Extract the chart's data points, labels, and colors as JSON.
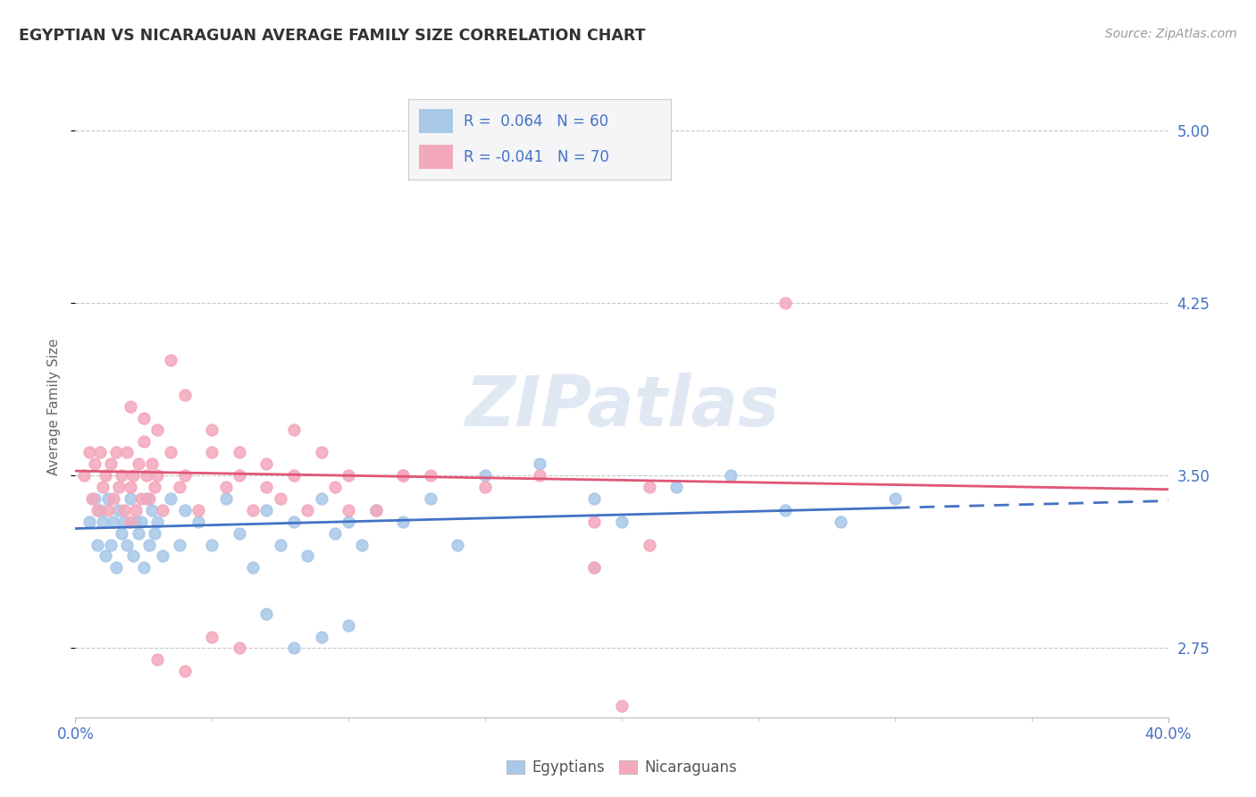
{
  "title": "EGYPTIAN VS NICARAGUAN AVERAGE FAMILY SIZE CORRELATION CHART",
  "source": "Source: ZipAtlas.com",
  "ylabel": "Average Family Size",
  "yticks": [
    2.75,
    3.5,
    4.25,
    5.0
  ],
  "xlim": [
    0.0,
    40.0
  ],
  "ylim": [
    2.45,
    5.15
  ],
  "R_egyptian": 0.064,
  "N_egyptian": 60,
  "R_nicaraguan": -0.041,
  "N_nicaraguan": 70,
  "egyptian_color": "#a8c8e8",
  "nicaraguan_color": "#f4a8bc",
  "trend_egyptian_color": "#4472c4",
  "trend_nicaraguan_color": "#e05575",
  "watermark": "ZIPatlas",
  "background_color": "#ffffff",
  "grid_color": "#c8c8c8",
  "title_color": "#333333",
  "axis_label_color": "#4472c4",
  "eg_trend_intercept": 3.27,
  "eg_trend_slope": 0.003,
  "ni_trend_intercept": 3.52,
  "ni_trend_slope": -0.002,
  "eg_solid_x_end": 30.0,
  "ni_solid_x_end": 40.0,
  "egyptian_points": [
    [
      0.5,
      3.3
    ],
    [
      0.7,
      3.4
    ],
    [
      0.8,
      3.2
    ],
    [
      0.9,
      3.35
    ],
    [
      1.0,
      3.3
    ],
    [
      1.1,
      3.15
    ],
    [
      1.2,
      3.4
    ],
    [
      1.3,
      3.2
    ],
    [
      1.4,
      3.3
    ],
    [
      1.5,
      3.1
    ],
    [
      1.6,
      3.35
    ],
    [
      1.7,
      3.25
    ],
    [
      1.8,
      3.3
    ],
    [
      1.9,
      3.2
    ],
    [
      2.0,
      3.4
    ],
    [
      2.1,
      3.15
    ],
    [
      2.2,
      3.3
    ],
    [
      2.3,
      3.25
    ],
    [
      2.4,
      3.3
    ],
    [
      2.5,
      3.1
    ],
    [
      2.6,
      3.4
    ],
    [
      2.7,
      3.2
    ],
    [
      2.8,
      3.35
    ],
    [
      2.9,
      3.25
    ],
    [
      3.0,
      3.3
    ],
    [
      3.2,
      3.15
    ],
    [
      3.5,
      3.4
    ],
    [
      3.8,
      3.2
    ],
    [
      4.0,
      3.35
    ],
    [
      4.5,
      3.3
    ],
    [
      5.0,
      3.2
    ],
    [
      5.5,
      3.4
    ],
    [
      6.0,
      3.25
    ],
    [
      6.5,
      3.1
    ],
    [
      7.0,
      3.35
    ],
    [
      7.5,
      3.2
    ],
    [
      8.0,
      3.3
    ],
    [
      8.5,
      3.15
    ],
    [
      9.0,
      3.4
    ],
    [
      9.5,
      3.25
    ],
    [
      10.0,
      3.3
    ],
    [
      10.5,
      3.2
    ],
    [
      11.0,
      3.35
    ],
    [
      12.0,
      3.3
    ],
    [
      13.0,
      3.4
    ],
    [
      14.0,
      3.2
    ],
    [
      15.0,
      3.5
    ],
    [
      17.0,
      3.55
    ],
    [
      19.0,
      3.4
    ],
    [
      20.0,
      3.3
    ],
    [
      22.0,
      3.45
    ],
    [
      24.0,
      3.5
    ],
    [
      26.0,
      3.35
    ],
    [
      28.0,
      3.3
    ],
    [
      30.0,
      3.4
    ],
    [
      7.0,
      2.9
    ],
    [
      8.0,
      2.75
    ],
    [
      9.0,
      2.8
    ],
    [
      10.0,
      2.85
    ],
    [
      19.0,
      3.1
    ]
  ],
  "nicaraguan_points": [
    [
      0.3,
      3.5
    ],
    [
      0.5,
      3.6
    ],
    [
      0.6,
      3.4
    ],
    [
      0.7,
      3.55
    ],
    [
      0.8,
      3.35
    ],
    [
      0.9,
      3.6
    ],
    [
      1.0,
      3.45
    ],
    [
      1.1,
      3.5
    ],
    [
      1.2,
      3.35
    ],
    [
      1.3,
      3.55
    ],
    [
      1.4,
      3.4
    ],
    [
      1.5,
      3.6
    ],
    [
      1.6,
      3.45
    ],
    [
      1.7,
      3.5
    ],
    [
      1.8,
      3.35
    ],
    [
      1.9,
      3.6
    ],
    [
      2.0,
      3.45
    ],
    [
      2.1,
      3.5
    ],
    [
      2.2,
      3.35
    ],
    [
      2.3,
      3.55
    ],
    [
      2.4,
      3.4
    ],
    [
      2.5,
      3.65
    ],
    [
      2.6,
      3.5
    ],
    [
      2.7,
      3.4
    ],
    [
      2.8,
      3.55
    ],
    [
      2.9,
      3.45
    ],
    [
      3.0,
      3.5
    ],
    [
      3.2,
      3.35
    ],
    [
      3.5,
      3.6
    ],
    [
      3.8,
      3.45
    ],
    [
      4.0,
      3.5
    ],
    [
      4.5,
      3.35
    ],
    [
      5.0,
      3.6
    ],
    [
      5.5,
      3.45
    ],
    [
      6.0,
      3.5
    ],
    [
      6.5,
      3.35
    ],
    [
      7.0,
      3.55
    ],
    [
      7.5,
      3.4
    ],
    [
      8.0,
      3.5
    ],
    [
      8.5,
      3.35
    ],
    [
      9.0,
      3.6
    ],
    [
      9.5,
      3.45
    ],
    [
      10.0,
      3.5
    ],
    [
      11.0,
      3.35
    ],
    [
      12.0,
      3.5
    ],
    [
      2.0,
      3.8
    ],
    [
      2.5,
      3.75
    ],
    [
      3.0,
      3.7
    ],
    [
      4.0,
      3.85
    ],
    [
      5.0,
      3.7
    ],
    [
      3.5,
      4.0
    ],
    [
      6.0,
      3.6
    ],
    [
      8.0,
      3.7
    ],
    [
      10.0,
      3.35
    ],
    [
      13.0,
      3.5
    ],
    [
      15.0,
      3.45
    ],
    [
      17.0,
      3.5
    ],
    [
      19.0,
      3.3
    ],
    [
      21.0,
      3.45
    ],
    [
      26.0,
      4.25
    ],
    [
      19.0,
      3.1
    ],
    [
      21.0,
      3.2
    ],
    [
      20.0,
      2.5
    ],
    [
      6.0,
      2.75
    ],
    [
      5.0,
      2.8
    ],
    [
      3.0,
      2.7
    ],
    [
      4.0,
      2.65
    ],
    [
      2.0,
      3.3
    ],
    [
      12.0,
      3.5
    ],
    [
      7.0,
      3.45
    ]
  ]
}
